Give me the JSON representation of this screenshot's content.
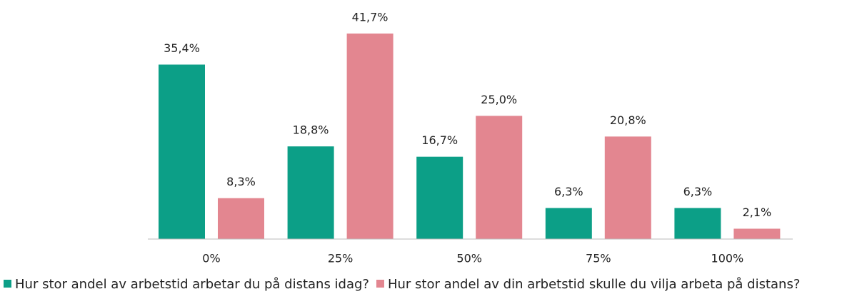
{
  "chart_data": {
    "type": "bar",
    "categories": [
      "0%",
      "25%",
      "50%",
      "75%",
      "100%"
    ],
    "series": [
      {
        "name": "Hur stor andel av arbetstid arbetar du på distans idag?",
        "color": "#0c9f87",
        "values": [
          35.4,
          18.8,
          16.7,
          6.3,
          6.3
        ],
        "value_labels": [
          "35,4%",
          "18,8%",
          "16,7%",
          "6,3%",
          "6,3%"
        ]
      },
      {
        "name": "Hur stor andel av din arbetstid skulle du vilja arbeta på distans?",
        "color": "#e38690",
        "values": [
          8.3,
          41.7,
          25.0,
          20.8,
          2.1
        ],
        "value_labels": [
          "8,3%",
          "41,7%",
          "25,0%",
          "20,8%",
          "2,1%"
        ]
      }
    ],
    "legend": "bottom"
  }
}
